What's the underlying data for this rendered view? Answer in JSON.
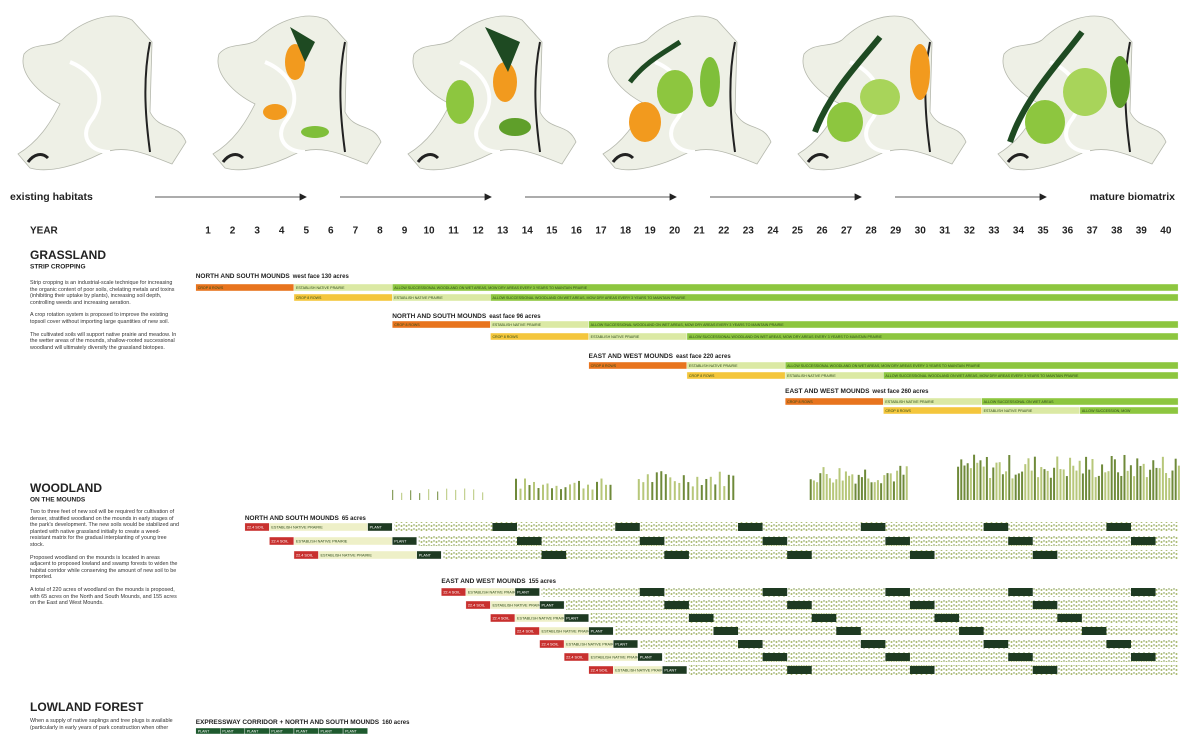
{
  "timeline": {
    "start_label": "existing habitats",
    "end_label": "mature biomatrix"
  },
  "year_label": "YEAR",
  "years": [
    1,
    2,
    3,
    4,
    5,
    6,
    7,
    8,
    9,
    10,
    11,
    12,
    13,
    14,
    15,
    16,
    17,
    18,
    19,
    20,
    21,
    22,
    23,
    24,
    25,
    26,
    27,
    28,
    29,
    30,
    31,
    32,
    33,
    34,
    35,
    36,
    37,
    38,
    39,
    40
  ],
  "grassland": {
    "title": "GRASSLAND",
    "subtitle": "STRIP CROPPING",
    "paragraphs": [
      "Strip cropping is an industrial-scale technique for increasing the organic content of poor soils, chelating metals and toxins (inhibiting their uptake by plants), increasing soil depth, controlling weeds and increasing aeration.",
      "A crop rotation system is proposed to improve the existing topsoil cover without importing large quantities of new soil.",
      "The cultivated soils will support native prairie and meadow. In the wetter areas of the mounds, shallow-rooted successional woodland will ultimately diversify the grassland biotopes."
    ],
    "phases": [
      {
        "name": "NORTH AND SOUTH MOUNDS",
        "detail": "west face 130 acres",
        "rows": [
          [
            {
              "label": "CROP 8 ROWS",
              "start": 1,
              "end": 4,
              "color": "#e8741e"
            },
            {
              "label": "ESTABLISH NATIVE PRAIRIE",
              "start": 5,
              "end": 8,
              "color": "#dbe9a4"
            },
            {
              "label": "ALLOW SUCCESSIONAL WOODLAND ON WET AREAS, MOW DRY AREAS EVERY 3 YEARS TO MAINTAIN PRAIRIE",
              "start": 9,
              "end": 40,
              "color": "#8dc63f"
            }
          ],
          [
            {
              "label": "CROP 8 ROWS",
              "start": 5,
              "end": 8,
              "color": "#f4c63c"
            },
            {
              "label": "ESTABLISH NATIVE PRAIRIE",
              "start": 9,
              "end": 12,
              "color": "#dbe9a4"
            },
            {
              "label": "ALLOW SUCCESSIONAL WOODLAND ON WET AREAS, MOW DRY AREAS EVERY 3 YEARS TO MAINTAIN PRAIRIE",
              "start": 13,
              "end": 40,
              "color": "#8dc63f"
            }
          ]
        ]
      },
      {
        "name": "NORTH AND SOUTH MOUNDS",
        "detail": "east face 96 acres",
        "rows": [
          [
            {
              "label": "CROP 8 ROWS",
              "start": 9,
              "end": 12,
              "color": "#e8741e"
            },
            {
              "label": "ESTABLISH NATIVE PRAIRIE",
              "start": 13,
              "end": 16,
              "color": "#dbe9a4"
            },
            {
              "label": "ALLOW SUCCESSIONAL WOODLAND ON WET AREAS, MOW DRY AREAS EVERY 3 YEARS TO MAINTAIN PRAIRIE",
              "start": 17,
              "end": 40,
              "color": "#8dc63f"
            }
          ],
          [
            {
              "label": "CROP 8 ROWS",
              "start": 13,
              "end": 16,
              "color": "#f4c63c"
            },
            {
              "label": "ESTABLISH NATIVE PRAIRIE",
              "start": 17,
              "end": 20,
              "color": "#dbe9a4"
            },
            {
              "label": "ALLOW SUCCESSIONAL WOODLAND ON WET AREAS, MOW DRY AREAS EVERY 3 YEARS TO MAINTAIN PRAIRIE",
              "start": 21,
              "end": 40,
              "color": "#8dc63f"
            }
          ]
        ]
      },
      {
        "name": "EAST AND WEST MOUNDS",
        "detail": "east face 220 acres",
        "rows": [
          [
            {
              "label": "CROP 8 ROWS",
              "start": 17,
              "end": 20,
              "color": "#e8741e"
            },
            {
              "label": "ESTABLISH NATIVE PRAIRIE",
              "start": 21,
              "end": 24,
              "color": "#dbe9a4"
            },
            {
              "label": "ALLOW SUCCESSIONAL WOODLAND ON WET AREAS, MOW DRY AREAS EVERY 3 YEARS TO MAINTAIN PRAIRIE",
              "start": 25,
              "end": 40,
              "color": "#8dc63f"
            }
          ],
          [
            {
              "label": "CROP 8 ROWS",
              "start": 21,
              "end": 24,
              "color": "#f4c63c"
            },
            {
              "label": "ESTABLISH NATIVE PRAIRIE",
              "start": 25,
              "end": 28,
              "color": "#dbe9a4"
            },
            {
              "label": "ALLOW SUCCESSIONAL WOODLAND ON WET AREAS, MOW DRY AREAS EVERY 3 YEARS TO MAINTAIN PRAIRIE",
              "start": 29,
              "end": 40,
              "color": "#8dc63f"
            }
          ]
        ]
      },
      {
        "name": "EAST AND WEST MOUNDS",
        "detail": "west face 260 acres",
        "rows": [
          [
            {
              "label": "CROP 8 ROWS",
              "start": 25,
              "end": 28,
              "color": "#e8741e"
            },
            {
              "label": "ESTABLISH NATIVE PRAIRIE",
              "start": 29,
              "end": 32,
              "color": "#dbe9a4"
            },
            {
              "label": "ALLOW SUCCESSIONAL ON WET AREAS",
              "start": 33,
              "end": 40,
              "color": "#8dc63f"
            }
          ],
          [
            {
              "label": "CROP 8 ROWS",
              "start": 29,
              "end": 32,
              "color": "#f4c63c"
            },
            {
              "label": "ESTABLISH NATIVE PRAIRIE",
              "start": 33,
              "end": 36,
              "color": "#dbe9a4"
            },
            {
              "label": "ALLOW SUCCESSION, MOW",
              "start": 37,
              "end": 40,
              "color": "#8dc63f"
            }
          ]
        ]
      }
    ]
  },
  "woodland": {
    "title": "WOODLAND",
    "subtitle": "ON THE MOUNDS",
    "paragraphs": [
      "Two to three feet of new soil will be required for cultivation of denser, stratified woodland on the mounds in early stages of the park's development. The new soils would be stabilized and planted with native grassland initially to create a weed-resistant matrix for the gradual interplanting of young tree stock.",
      "Proposed woodland on the mounds is located in areas adjacent to proposed lowland and swamp forests to widen the habitat corridor while conserving the amount of new soil to be imported.",
      "A total of 220 acres of woodland on the mounds is proposed, with 65 acres on the North and South Mounds, and 155 acres on the East and West Mounds."
    ],
    "phases": [
      {
        "name": "NORTH AND SOUTH MOUNDS",
        "detail": "65 acres",
        "rows": [
          [
            {
              "label": "22.4 SOIL",
              "start": 3,
              "end": 3,
              "color": "#c8302e"
            },
            {
              "label": "ESTABLISH NATIVE PRAIRIE",
              "start": 4,
              "end": 7,
              "color": "#eef0c8"
            },
            {
              "label": "PLANT",
              "start": 8,
              "end": 8,
              "color": "#1e3a22"
            }
          ],
          [
            {
              "label": "22.4 SOIL",
              "start": 4,
              "end": 4,
              "color": "#c8302e"
            },
            {
              "label": "ESTABLISH NATIVE PRAIRIE",
              "start": 5,
              "end": 8,
              "color": "#eef0c8"
            },
            {
              "label": "PLANT",
              "start": 9,
              "end": 9,
              "color": "#1e3a22"
            }
          ],
          [
            {
              "label": "22.4 SOIL",
              "start": 5,
              "end": 5,
              "color": "#c8302e"
            },
            {
              "label": "ESTABLISH NATIVE PRAIRIE",
              "start": 6,
              "end": 9,
              "color": "#eef0c8"
            },
            {
              "label": "PLANT",
              "start": 10,
              "end": 10,
              "color": "#1e3a22"
            }
          ]
        ]
      },
      {
        "name": "EAST AND WEST MOUNDS",
        "detail": "155 acres",
        "rows": [
          [
            {
              "label": "22.4 SOIL",
              "start": 11,
              "end": 11,
              "color": "#c8302e"
            },
            {
              "label": "ESTABLISH NATIVE PRAIRIE",
              "start": 12,
              "end": 13,
              "color": "#eef0c8"
            },
            {
              "label": "PLANT",
              "start": 14,
              "end": 14,
              "color": "#1e3a22"
            }
          ],
          [
            {
              "label": "22.4 SOIL",
              "start": 12,
              "end": 12,
              "color": "#c8302e"
            },
            {
              "label": "ESTABLISH NATIVE PRAIRIE",
              "start": 13,
              "end": 14,
              "color": "#eef0c8"
            },
            {
              "label": "PLANT",
              "start": 15,
              "end": 15,
              "color": "#1e3a22"
            }
          ],
          [
            {
              "label": "22.4 SOIL",
              "start": 13,
              "end": 13,
              "color": "#c8302e"
            },
            {
              "label": "ESTABLISH NATIVE PRAIRIE",
              "start": 14,
              "end": 15,
              "color": "#eef0c8"
            },
            {
              "label": "PLANT",
              "start": 16,
              "end": 16,
              "color": "#1e3a22"
            }
          ],
          [
            {
              "label": "22.4 SOIL",
              "start": 14,
              "end": 14,
              "color": "#c8302e"
            },
            {
              "label": "ESTABLISH NATIVE PRAIRIE",
              "start": 15,
              "end": 16,
              "color": "#eef0c8"
            },
            {
              "label": "PLANT",
              "start": 17,
              "end": 17,
              "color": "#1e3a22"
            }
          ],
          [
            {
              "label": "22.4 SOIL",
              "start": 15,
              "end": 15,
              "color": "#c8302e"
            },
            {
              "label": "ESTABLISH NATIVE PRAIRIE",
              "start": 16,
              "end": 17,
              "color": "#eef0c8"
            },
            {
              "label": "PLANT",
              "start": 18,
              "end": 18,
              "color": "#1e3a22"
            }
          ],
          [
            {
              "label": "22.4 SOIL",
              "start": 16,
              "end": 16,
              "color": "#c8302e"
            },
            {
              "label": "ESTABLISH NATIVE PRAIRIE",
              "start": 17,
              "end": 18,
              "color": "#eef0c8"
            },
            {
              "label": "PLANT",
              "start": 19,
              "end": 19,
              "color": "#1e3a22"
            }
          ],
          [
            {
              "label": "22.4 SOIL",
              "start": 17,
              "end": 17,
              "color": "#c8302e"
            },
            {
              "label": "ESTABLISH NATIVE PRAIRIE",
              "start": 18,
              "end": 19,
              "color": "#eef0c8"
            },
            {
              "label": "PLANT",
              "start": 20,
              "end": 20,
              "color": "#1e3a22"
            }
          ]
        ]
      }
    ]
  },
  "lowland": {
    "title": "LOWLAND FOREST",
    "paragraphs": [
      "When a supply of native saplings and tree plugs is available (particularly in early years of park construction when other"
    ],
    "phases": [
      {
        "name": "EXPRESSWAY CORRIDOR + NORTH AND SOUTH MOUNDS",
        "detail": "160 acres",
        "rows": [
          [
            {
              "label": "PLANT",
              "start": 1,
              "end": 1,
              "color": "#1e5a2e"
            },
            {
              "label": "PLANT",
              "start": 2,
              "end": 2,
              "color": "#1e5a2e"
            },
            {
              "label": "PLANT",
              "start": 3,
              "end": 3,
              "color": "#1e5a2e"
            },
            {
              "label": "PLANT",
              "start": 4,
              "end": 4,
              "color": "#1e5a2e"
            },
            {
              "label": "PLANT",
              "start": 5,
              "end": 5,
              "color": "#1e5a2e"
            },
            {
              "label": "PLANT",
              "start": 6,
              "end": 6,
              "color": "#1e5a2e"
            },
            {
              "label": "PLANT",
              "start": 7,
              "end": 7,
              "color": "#1e5a2e"
            }
          ]
        ]
      }
    ]
  }
}
